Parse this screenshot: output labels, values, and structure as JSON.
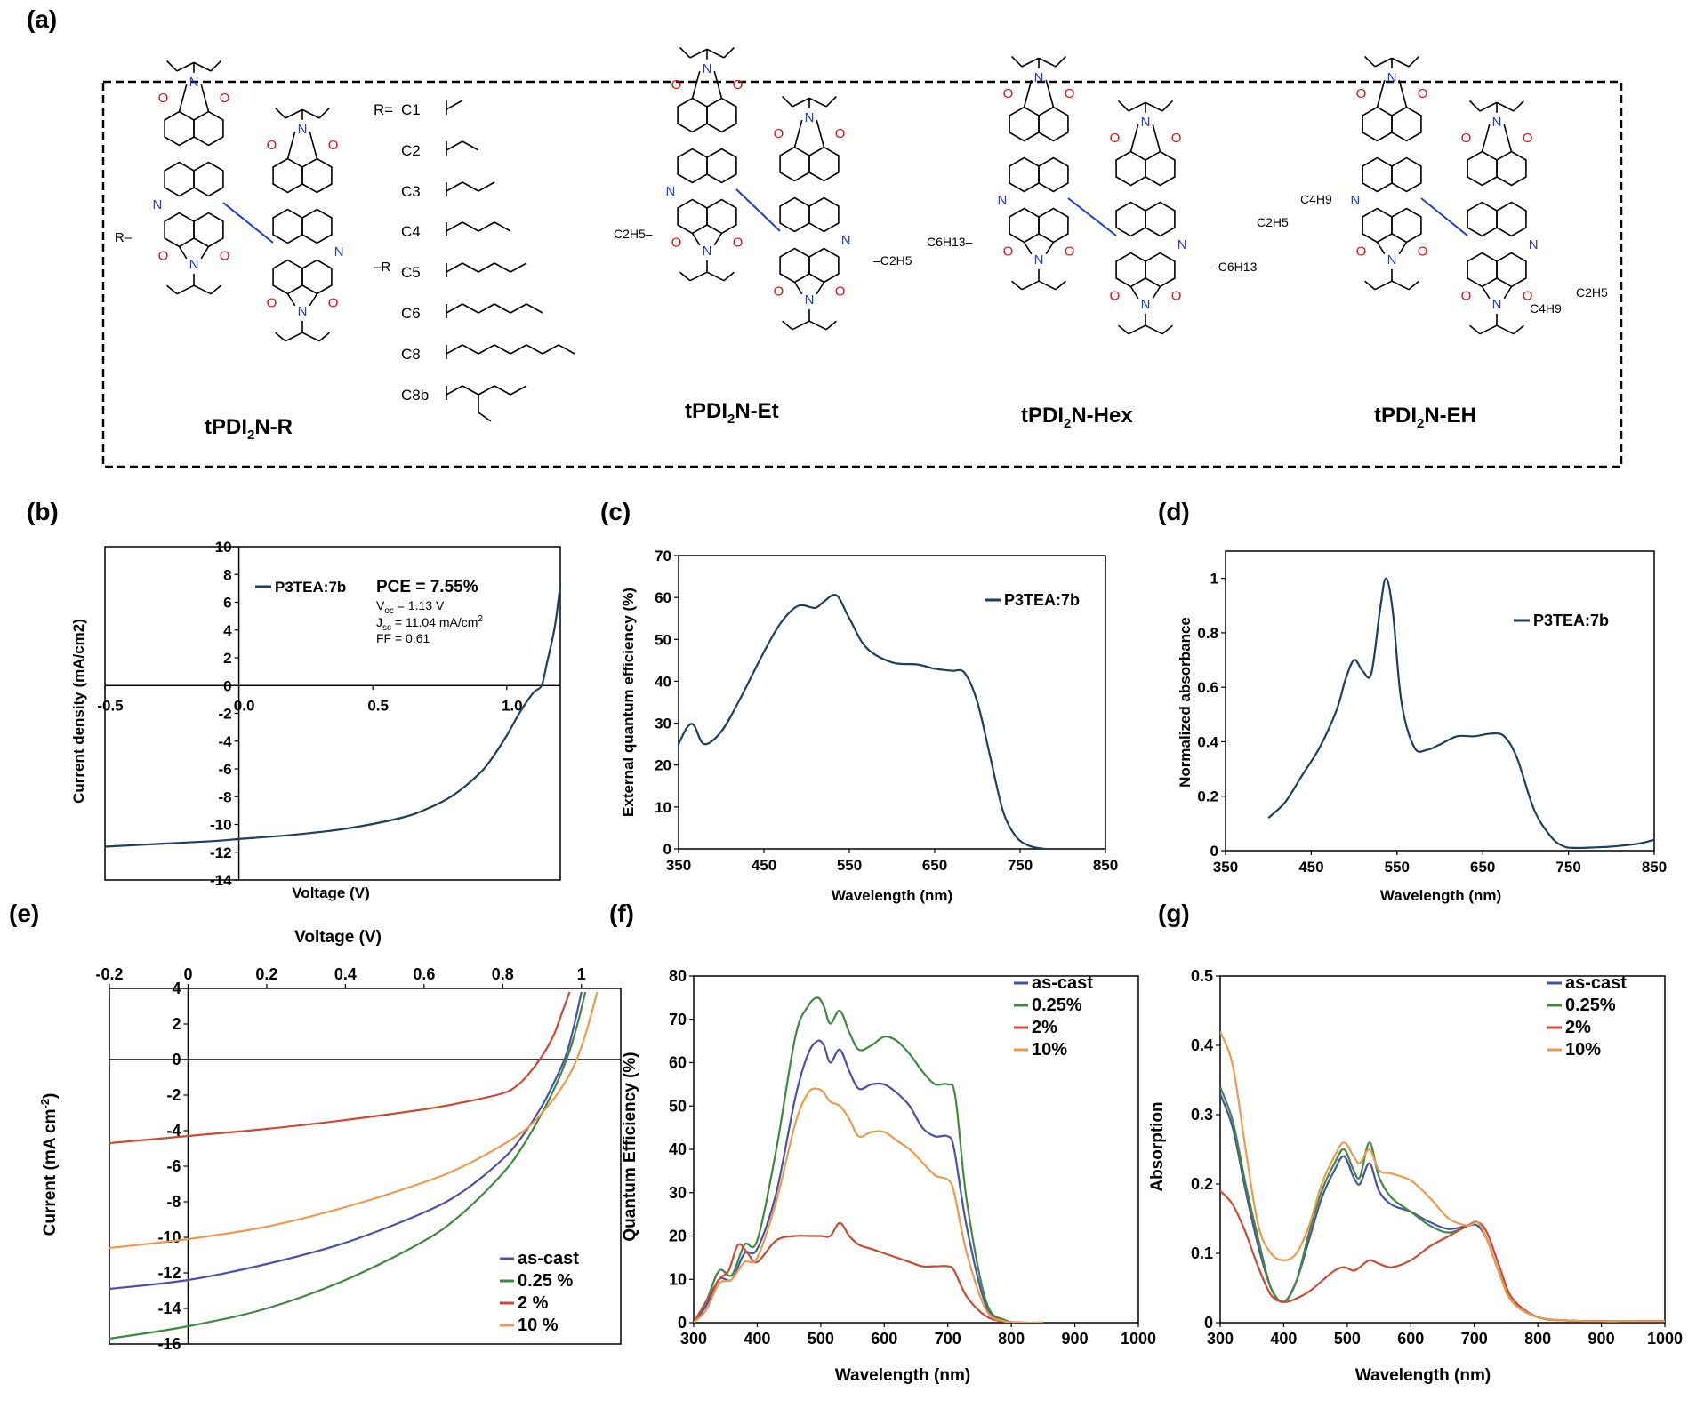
{
  "panel_labels": [
    "(a)",
    "(b)",
    "(c)",
    "(d)",
    "(e)",
    "(f)",
    "(g)"
  ],
  "structures": {
    "names": [
      {
        "base": "tPDI",
        "sub": "2",
        "suffix": "N-R"
      },
      {
        "base": "tPDI",
        "sub": "2",
        "suffix": "N-Et"
      },
      {
        "base": "tPDI",
        "sub": "2",
        "suffix": "N-Hex"
      },
      {
        "base": "tPDI",
        "sub": "2",
        "suffix": "N-EH"
      }
    ],
    "r_prefix": "R=",
    "r_groups": [
      "C1",
      "C2",
      "C3",
      "C4",
      "C5",
      "C6",
      "C8",
      "C8b"
    ],
    "atoms": {
      "N": "N",
      "O": "O",
      "R": "R",
      "dash": "–"
    },
    "substituents": {
      "et": "C2H5",
      "hex": "C6H13",
      "eh_ethyl": "C2H5",
      "eh_butyl": "C4H9"
    }
  },
  "chart_data": [
    {
      "id": "b",
      "type": "line",
      "xlabel": "Voltage (V)",
      "ylabel": "Current density (mA/cm2)",
      "xlim": [
        -0.5,
        1.2
      ],
      "ylim": [
        -14,
        10
      ],
      "xticks": [
        "-0.5",
        "0.0",
        "0.5",
        "1.0"
      ],
      "yticks": [
        "10",
        "8",
        "6",
        "4",
        "2",
        "0",
        "-2",
        "-4",
        "-6",
        "-8",
        "-10",
        "-12",
        "-14"
      ],
      "series": [
        {
          "name": "P3TEA:7b",
          "color": "#1f3f5f",
          "x": [
            -0.5,
            -0.3,
            -0.1,
            0.0,
            0.2,
            0.4,
            0.6,
            0.7,
            0.8,
            0.9,
            0.95,
            1.0,
            1.05,
            1.1,
            1.13,
            1.15,
            1.18,
            1.2
          ],
          "y": [
            -11.6,
            -11.4,
            -11.2,
            -11.05,
            -10.75,
            -10.3,
            -9.55,
            -8.9,
            -7.9,
            -6.3,
            -5.1,
            -3.6,
            -1.9,
            -0.5,
            0.0,
            1.6,
            4.3,
            7.3
          ]
        }
      ],
      "annotations": {
        "pce": "PCE = 7.55%",
        "voc": "1.13 V",
        "jsc": "11.04 mA/cm",
        "ff": "FF = 0.61",
        "voc_main": "V",
        "voc_sub": "oc",
        "jsc_main": "J",
        "jsc_sub": "sc",
        "jsc_sup": "2",
        "eq": " = "
      }
    },
    {
      "id": "c",
      "type": "line",
      "xlabel": "Wavelength (nm)",
      "ylabel": "External quantum efficiency (%)",
      "xlim": [
        350,
        850
      ],
      "ylim": [
        0,
        70
      ],
      "xticks": [
        "350",
        "450",
        "550",
        "650",
        "750",
        "850"
      ],
      "yticks": [
        "70",
        "60",
        "50",
        "40",
        "30",
        "20",
        "10",
        "0"
      ],
      "series": [
        {
          "name": "P3TEA:7b",
          "color": "#1f3f5f",
          "x": [
            350,
            360,
            368,
            380,
            400,
            420,
            450,
            470,
            490,
            510,
            520,
            535,
            550,
            570,
            600,
            630,
            650,
            670,
            685,
            700,
            715,
            730,
            745,
            760,
            775,
            780
          ],
          "y": [
            25,
            29,
            29.5,
            25,
            28,
            35,
            47,
            54,
            58,
            57.5,
            59,
            60.5,
            55,
            48,
            44.5,
            44,
            43,
            42.5,
            42,
            35,
            22,
            9,
            3,
            0.8,
            0.1,
            0
          ]
        }
      ]
    },
    {
      "id": "d",
      "type": "line",
      "xlabel": "Wavelength (nm)",
      "ylabel": "Normalized absorbance",
      "xlim": [
        350,
        850
      ],
      "ylim": [
        0,
        1.1
      ],
      "xticks": [
        "350",
        "450",
        "550",
        "650",
        "750",
        "850"
      ],
      "yticks": [
        "1",
        "0.8",
        "0.6",
        "0.4",
        "0.2",
        "0"
      ],
      "series": [
        {
          "name": "P3TEA:7b",
          "color": "#1f3f5f",
          "x": [
            400,
            420,
            440,
            460,
            480,
            490,
            500,
            510,
            520,
            530,
            537,
            545,
            555,
            570,
            585,
            600,
            620,
            640,
            660,
            675,
            690,
            710,
            730,
            745,
            760,
            780,
            800,
            830,
            850
          ],
          "y": [
            0.12,
            0.18,
            0.28,
            0.38,
            0.52,
            0.63,
            0.7,
            0.66,
            0.65,
            0.88,
            1.0,
            0.88,
            0.55,
            0.38,
            0.37,
            0.39,
            0.42,
            0.42,
            0.43,
            0.42,
            0.34,
            0.15,
            0.05,
            0.015,
            0.01,
            0.012,
            0.015,
            0.025,
            0.04
          ]
        }
      ]
    },
    {
      "id": "e",
      "type": "line",
      "xlabel": "Voltage (V)",
      "ylabel": "Current (mA cm-2)",
      "ylabel_main": "Current (mA cm",
      "ylabel_sup": "-2",
      "ylabel_close": ")",
      "xlim": [
        -0.2,
        1.1
      ],
      "ylim": [
        -16,
        4
      ],
      "xticks": [
        "-0.2",
        "0",
        "0.2",
        "0.4",
        "0.6",
        "0.8",
        "1"
      ],
      "yticks": [
        "4",
        "2",
        "0",
        "-2",
        "-4",
        "-6",
        "-8",
        "-10",
        "-12",
        "-14",
        "-16"
      ],
      "series": [
        {
          "name": "as-cast",
          "color": "#4a52a8",
          "x": [
            -0.2,
            0.0,
            0.2,
            0.4,
            0.6,
            0.7,
            0.8,
            0.85,
            0.9,
            0.93,
            0.96,
            0.98,
            1.0
          ],
          "y": [
            -12.9,
            -12.4,
            -11.5,
            -10.3,
            -8.6,
            -7.4,
            -5.6,
            -4.3,
            -2.6,
            -1.3,
            0.2,
            1.8,
            3.8
          ]
        },
        {
          "name": "0.25 %",
          "color": "#3f8a3f",
          "x": [
            -0.2,
            0.0,
            0.2,
            0.4,
            0.6,
            0.7,
            0.8,
            0.85,
            0.9,
            0.94,
            0.97,
            0.99,
            1.01
          ],
          "y": [
            -15.7,
            -15.0,
            -14.0,
            -12.4,
            -10.2,
            -8.6,
            -6.4,
            -4.9,
            -3.0,
            -1.2,
            0.5,
            2.0,
            3.8
          ]
        },
        {
          "name": "2 %",
          "color": "#cc4a34",
          "x": [
            -0.2,
            0.0,
            0.2,
            0.4,
            0.6,
            0.7,
            0.8,
            0.84,
            0.87,
            0.9,
            0.93,
            0.95,
            0.97
          ],
          "y": [
            -4.7,
            -4.3,
            -3.9,
            -3.4,
            -2.8,
            -2.4,
            -1.9,
            -1.4,
            -0.7,
            0.2,
            1.4,
            2.6,
            3.8
          ]
        },
        {
          "name": "10 %",
          "color": "#ee9a4e",
          "x": [
            -0.2,
            0.0,
            0.2,
            0.4,
            0.6,
            0.7,
            0.8,
            0.86,
            0.9,
            0.94,
            0.98,
            1.01,
            1.04
          ],
          "y": [
            -10.6,
            -10.1,
            -9.4,
            -8.3,
            -6.9,
            -6.0,
            -4.8,
            -3.9,
            -3.0,
            -1.9,
            -0.4,
            1.4,
            3.8
          ]
        }
      ]
    },
    {
      "id": "f",
      "type": "line",
      "xlabel": "Wavelength (nm)",
      "ylabel": "Quantum Efficiency (%)",
      "xlim": [
        300,
        1000
      ],
      "ylim": [
        0,
        80
      ],
      "xticks": [
        "300",
        "400",
        "500",
        "600",
        "700",
        "800",
        "900",
        "1000"
      ],
      "yticks": [
        "80",
        "70",
        "60",
        "50",
        "40",
        "30",
        "20",
        "10",
        "0"
      ],
      "series": [
        {
          "name": "as-cast",
          "color": "#4a52a8",
          "x": [
            300,
            320,
            340,
            360,
            380,
            400,
            430,
            460,
            480,
            495,
            505,
            515,
            530,
            545,
            560,
            580,
            600,
            620,
            640,
            660,
            680,
            700,
            710,
            730,
            760,
            790,
            820,
            850
          ],
          "y": [
            0,
            4,
            10,
            10,
            16,
            17,
            30,
            52,
            62,
            65,
            64,
            60,
            63,
            58,
            54,
            55,
            55,
            53,
            50,
            45,
            43,
            43,
            40,
            22,
            4,
            0.5,
            0,
            0
          ]
        },
        {
          "name": "0.25%",
          "color": "#3f8a3f",
          "x": [
            300,
            320,
            340,
            360,
            380,
            400,
            430,
            460,
            480,
            495,
            505,
            515,
            530,
            545,
            560,
            580,
            600,
            620,
            640,
            660,
            680,
            700,
            712,
            730,
            760,
            790,
            820,
            850
          ],
          "y": [
            0,
            5,
            12,
            11,
            18,
            19,
            40,
            66,
            73,
            75,
            73,
            69,
            72,
            67,
            63,
            64,
            66,
            65,
            62,
            58,
            55,
            55,
            52,
            28,
            5,
            0.6,
            0,
            0
          ]
        },
        {
          "name": "2%",
          "color": "#cc4a34",
          "x": [
            300,
            320,
            340,
            355,
            370,
            385,
            400,
            430,
            460,
            480,
            500,
            515,
            530,
            545,
            560,
            580,
            600,
            620,
            640,
            660,
            680,
            700,
            710,
            730,
            760,
            790,
            820,
            850
          ],
          "y": [
            0,
            5,
            10,
            12,
            18,
            16,
            14,
            19,
            20,
            20,
            20,
            20,
            23,
            20,
            18,
            17,
            16,
            15,
            14,
            13,
            13,
            13,
            12,
            6,
            1.5,
            0.2,
            0,
            0
          ]
        },
        {
          "name": "10%",
          "color": "#ee9a4e",
          "x": [
            300,
            320,
            340,
            360,
            380,
            400,
            430,
            460,
            480,
            495,
            505,
            515,
            530,
            545,
            560,
            580,
            600,
            620,
            640,
            660,
            680,
            700,
            710,
            730,
            760,
            790,
            820,
            850
          ],
          "y": [
            0,
            3,
            9,
            10,
            14,
            15,
            28,
            46,
            53,
            54,
            53,
            51,
            50,
            47,
            43,
            44,
            44,
            42,
            40,
            37,
            34,
            33,
            30,
            16,
            3,
            0.3,
            0,
            0
          ]
        }
      ]
    },
    {
      "id": "g",
      "type": "line",
      "xlabel": "Wavelength (nm)",
      "ylabel": "Absorption",
      "xlim": [
        300,
        1000
      ],
      "ylim": [
        0,
        0.5
      ],
      "xticks": [
        "300",
        "400",
        "500",
        "600",
        "700",
        "800",
        "900",
        "1000"
      ],
      "yticks": [
        "0.5",
        "0.4",
        "0.3",
        "0.2",
        "0.1",
        "0"
      ],
      "series": [
        {
          "name": "as-cast",
          "color": "#4a52a8",
          "x": [
            300,
            320,
            340,
            360,
            380,
            400,
            420,
            440,
            460,
            480,
            495,
            510,
            520,
            535,
            550,
            570,
            600,
            630,
            660,
            690,
            705,
            720,
            740,
            760,
            800,
            850,
            900,
            950,
            1000
          ],
          "y": [
            0.33,
            0.28,
            0.19,
            0.11,
            0.05,
            0.03,
            0.06,
            0.12,
            0.18,
            0.22,
            0.24,
            0.21,
            0.2,
            0.23,
            0.19,
            0.17,
            0.16,
            0.145,
            0.135,
            0.14,
            0.14,
            0.12,
            0.07,
            0.03,
            0.008,
            0.003,
            0.002,
            0.002,
            0.002
          ]
        },
        {
          "name": "0.25%",
          "color": "#3f8a3f",
          "x": [
            300,
            320,
            340,
            360,
            380,
            400,
            420,
            440,
            460,
            480,
            495,
            510,
            520,
            535,
            550,
            570,
            600,
            630,
            660,
            690,
            705,
            720,
            740,
            760,
            800,
            850,
            900,
            950,
            1000
          ],
          "y": [
            0.34,
            0.29,
            0.2,
            0.12,
            0.05,
            0.03,
            0.06,
            0.13,
            0.19,
            0.23,
            0.25,
            0.22,
            0.21,
            0.26,
            0.21,
            0.18,
            0.16,
            0.14,
            0.13,
            0.14,
            0.145,
            0.12,
            0.07,
            0.03,
            0.008,
            0.003,
            0.002,
            0.002,
            0.002
          ]
        },
        {
          "name": "2%",
          "color": "#cc4a34",
          "x": [
            300,
            320,
            340,
            360,
            380,
            400,
            420,
            440,
            460,
            480,
            495,
            510,
            520,
            535,
            550,
            570,
            600,
            630,
            660,
            690,
            705,
            720,
            740,
            760,
            800,
            850,
            900,
            950,
            1000
          ],
          "y": [
            0.19,
            0.17,
            0.13,
            0.08,
            0.04,
            0.03,
            0.035,
            0.045,
            0.06,
            0.075,
            0.08,
            0.075,
            0.08,
            0.09,
            0.085,
            0.08,
            0.09,
            0.11,
            0.125,
            0.14,
            0.145,
            0.13,
            0.08,
            0.035,
            0.008,
            0.003,
            0.002,
            0.002,
            0.002
          ]
        },
        {
          "name": "10%",
          "color": "#ee9a4e",
          "x": [
            300,
            320,
            340,
            360,
            380,
            400,
            420,
            440,
            460,
            480,
            495,
            510,
            520,
            535,
            550,
            570,
            600,
            630,
            660,
            690,
            705,
            720,
            740,
            760,
            800,
            850,
            900,
            950,
            1000
          ],
          "y": [
            0.42,
            0.37,
            0.25,
            0.14,
            0.1,
            0.09,
            0.1,
            0.14,
            0.2,
            0.24,
            0.26,
            0.24,
            0.23,
            0.25,
            0.22,
            0.215,
            0.205,
            0.18,
            0.15,
            0.14,
            0.145,
            0.12,
            0.07,
            0.03,
            0.008,
            0.003,
            0.002,
            0.002,
            0.002
          ]
        }
      ]
    }
  ]
}
